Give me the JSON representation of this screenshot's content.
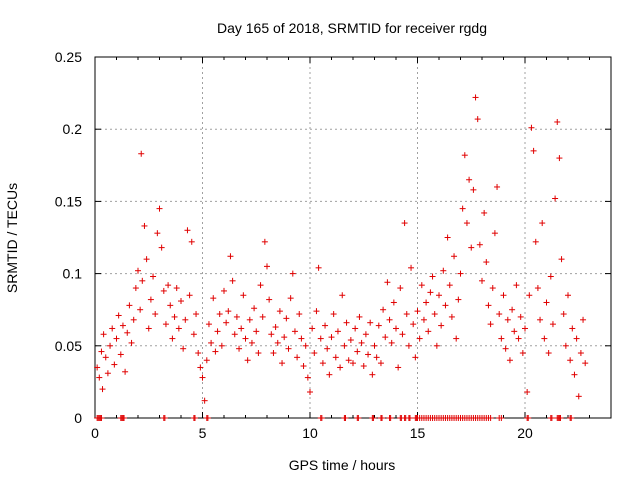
{
  "chart_data": {
    "type": "scatter",
    "title": "Day 165 of 2018, SRMTID for receiver rgdg",
    "xlabel": "GPS time / hours",
    "ylabel": "SRMTID / TECUs",
    "xlim": [
      0,
      24
    ],
    "ylim": [
      0,
      0.25
    ],
    "x_ticks": [
      0,
      5,
      10,
      15,
      20
    ],
    "x_tick_labels": [
      "0",
      "5",
      "10",
      "15",
      "20"
    ],
    "y_ticks": [
      0,
      0.05,
      0.1,
      0.15,
      0.2,
      0.25
    ],
    "y_tick_labels": [
      "0",
      "0.05",
      "0.1",
      "0.15",
      "0.2",
      "0.25"
    ],
    "grid": true,
    "marker": "+",
    "color": "#e00000",
    "series": [
      {
        "name": "SRMTID",
        "points": [
          [
            0.1,
            0.035
          ],
          [
            0.2,
            0.028
          ],
          [
            0.3,
            0.046
          ],
          [
            0.35,
            0.02
          ],
          [
            0.4,
            0.058
          ],
          [
            0.5,
            0.042
          ],
          [
            0.6,
            0.031
          ],
          [
            0.7,
            0.05
          ],
          [
            0.8,
            0.062
          ],
          [
            0.9,
            0.037
          ],
          [
            1.0,
            0.055
          ],
          [
            1.1,
            0.071
          ],
          [
            1.2,
            0.044
          ],
          [
            1.3,
            0.064
          ],
          [
            1.4,
            0.032
          ],
          [
            1.5,
            0.059
          ],
          [
            1.6,
            0.078
          ],
          [
            1.7,
            0.052
          ],
          [
            1.8,
            0.068
          ],
          [
            1.9,
            0.09
          ],
          [
            2.0,
            0.102
          ],
          [
            2.1,
            0.075
          ],
          [
            2.15,
            0.183
          ],
          [
            2.2,
            0.095
          ],
          [
            2.3,
            0.133
          ],
          [
            2.4,
            0.11
          ],
          [
            2.5,
            0.062
          ],
          [
            2.6,
            0.082
          ],
          [
            2.7,
            0.098
          ],
          [
            2.8,
            0.072
          ],
          [
            2.9,
            0.128
          ],
          [
            3.0,
            0.145
          ],
          [
            3.1,
            0.118
          ],
          [
            3.2,
            0.088
          ],
          [
            3.3,
            0.065
          ],
          [
            3.4,
            0.092
          ],
          [
            3.5,
            0.078
          ],
          [
            3.6,
            0.055
          ],
          [
            3.7,
            0.07
          ],
          [
            3.8,
            0.09
          ],
          [
            3.9,
            0.062
          ],
          [
            4.0,
            0.081
          ],
          [
            4.1,
            0.048
          ],
          [
            4.2,
            0.068
          ],
          [
            4.3,
            0.13
          ],
          [
            4.4,
            0.085
          ],
          [
            4.5,
            0.122
          ],
          [
            4.6,
            0.058
          ],
          [
            4.7,
            0.072
          ],
          [
            4.8,
            0.045
          ],
          [
            4.9,
            0.035
          ],
          [
            5.0,
            0.028
          ],
          [
            5.1,
            0.012
          ],
          [
            5.2,
            0.04
          ],
          [
            5.3,
            0.065
          ],
          [
            5.4,
            0.052
          ],
          [
            5.5,
            0.083
          ],
          [
            5.6,
            0.046
          ],
          [
            5.7,
            0.06
          ],
          [
            5.8,
            0.072
          ],
          [
            5.9,
            0.05
          ],
          [
            6.0,
            0.088
          ],
          [
            6.1,
            0.066
          ],
          [
            6.2,
            0.074
          ],
          [
            6.3,
            0.112
          ],
          [
            6.4,
            0.095
          ],
          [
            6.5,
            0.058
          ],
          [
            6.6,
            0.07
          ],
          [
            6.7,
            0.048
          ],
          [
            6.8,
            0.062
          ],
          [
            6.9,
            0.085
          ],
          [
            7.0,
            0.055
          ],
          [
            7.1,
            0.04
          ],
          [
            7.2,
            0.068
          ],
          [
            7.3,
            0.052
          ],
          [
            7.4,
            0.076
          ],
          [
            7.5,
            0.06
          ],
          [
            7.6,
            0.045
          ],
          [
            7.7,
            0.092
          ],
          [
            7.8,
            0.07
          ],
          [
            7.9,
            0.122
          ],
          [
            8.0,
            0.105
          ],
          [
            8.1,
            0.082
          ],
          [
            8.2,
            0.058
          ],
          [
            8.3,
            0.045
          ],
          [
            8.4,
            0.063
          ],
          [
            8.5,
            0.052
          ],
          [
            8.6,
            0.074
          ],
          [
            8.7,
            0.038
          ],
          [
            8.8,
            0.056
          ],
          [
            8.9,
            0.069
          ],
          [
            9.0,
            0.048
          ],
          [
            9.1,
            0.083
          ],
          [
            9.2,
            0.1
          ],
          [
            9.3,
            0.06
          ],
          [
            9.4,
            0.042
          ],
          [
            9.5,
            0.072
          ],
          [
            9.6,
            0.055
          ],
          [
            9.7,
            0.036
          ],
          [
            9.8,
            0.05
          ],
          [
            9.9,
            0.028
          ],
          [
            10.0,
            0.018
          ],
          [
            10.1,
            0.062
          ],
          [
            10.2,
            0.045
          ],
          [
            10.3,
            0.074
          ],
          [
            10.4,
            0.104
          ],
          [
            10.5,
            0.055
          ],
          [
            10.6,
            0.038
          ],
          [
            10.7,
            0.064
          ],
          [
            10.8,
            0.048
          ],
          [
            10.9,
            0.03
          ],
          [
            11.0,
            0.056
          ],
          [
            11.1,
            0.072
          ],
          [
            11.2,
            0.042
          ],
          [
            11.3,
            0.06
          ],
          [
            11.4,
            0.035
          ],
          [
            11.5,
            0.085
          ],
          [
            11.6,
            0.05
          ],
          [
            11.7,
            0.066
          ],
          [
            11.8,
            0.04
          ],
          [
            11.9,
            0.054
          ],
          [
            12.0,
            0.038
          ],
          [
            12.1,
            0.062
          ],
          [
            12.2,
            0.046
          ],
          [
            12.3,
            0.07
          ],
          [
            12.4,
            0.052
          ],
          [
            12.5,
            0.036
          ],
          [
            12.6,
            0.058
          ],
          [
            12.7,
            0.044
          ],
          [
            12.8,
            0.066
          ],
          [
            12.9,
            0.03
          ],
          [
            13.0,
            0.05
          ],
          [
            13.1,
            0.042
          ],
          [
            13.2,
            0.064
          ],
          [
            13.3,
            0.038
          ],
          [
            13.4,
            0.075
          ],
          [
            13.5,
            0.056
          ],
          [
            13.6,
            0.094
          ],
          [
            13.7,
            0.068
          ],
          [
            13.8,
            0.052
          ],
          [
            13.9,
            0.08
          ],
          [
            14.0,
            0.062
          ],
          [
            14.1,
            0.035
          ],
          [
            14.2,
            0.09
          ],
          [
            14.3,
            0.058
          ],
          [
            14.4,
            0.135
          ],
          [
            14.5,
            0.072
          ],
          [
            14.6,
            0.05
          ],
          [
            14.7,
            0.104
          ],
          [
            14.8,
            0.065
          ],
          [
            14.9,
            0.042
          ],
          [
            15.0,
            0.074
          ],
          [
            15.1,
            0.055
          ],
          [
            15.2,
            0.092
          ],
          [
            15.3,
            0.068
          ],
          [
            15.4,
            0.08
          ],
          [
            15.5,
            0.06
          ],
          [
            15.6,
            0.087
          ],
          [
            15.7,
            0.098
          ],
          [
            15.8,
            0.072
          ],
          [
            15.9,
            0.05
          ],
          [
            16.0,
            0.085
          ],
          [
            16.1,
            0.064
          ],
          [
            16.2,
            0.102
          ],
          [
            16.3,
            0.078
          ],
          [
            16.4,
            0.125
          ],
          [
            16.5,
            0.092
          ],
          [
            16.6,
            0.07
          ],
          [
            16.7,
            0.112
          ],
          [
            16.8,
            0.055
          ],
          [
            16.9,
            0.082
          ],
          [
            17.0,
            0.1
          ],
          [
            17.1,
            0.145
          ],
          [
            17.2,
            0.182
          ],
          [
            17.3,
            0.135
          ],
          [
            17.4,
            0.165
          ],
          [
            17.5,
            0.118
          ],
          [
            17.6,
            0.158
          ],
          [
            17.7,
            0.222
          ],
          [
            17.8,
            0.207
          ],
          [
            17.9,
            0.12
          ],
          [
            18.0,
            0.095
          ],
          [
            18.1,
            0.142
          ],
          [
            18.2,
            0.108
          ],
          [
            18.3,
            0.078
          ],
          [
            18.4,
            0.065
          ],
          [
            18.5,
            0.09
          ],
          [
            18.6,
            0.128
          ],
          [
            18.7,
            0.16
          ],
          [
            18.8,
            0.072
          ],
          [
            18.9,
            0.055
          ],
          [
            19.0,
            0.085
          ],
          [
            19.1,
            0.048
          ],
          [
            19.2,
            0.068
          ],
          [
            19.3,
            0.04
          ],
          [
            19.4,
            0.075
          ],
          [
            19.5,
            0.06
          ],
          [
            19.6,
            0.092
          ],
          [
            19.7,
            0.055
          ],
          [
            19.8,
            0.07
          ],
          [
            19.9,
            0.045
          ],
          [
            20.0,
            0.062
          ],
          [
            20.1,
            0.018
          ],
          [
            20.2,
            0.085
          ],
          [
            20.3,
            0.201
          ],
          [
            20.4,
            0.185
          ],
          [
            20.5,
            0.122
          ],
          [
            20.6,
            0.09
          ],
          [
            20.7,
            0.068
          ],
          [
            20.8,
            0.135
          ],
          [
            20.9,
            0.055
          ],
          [
            21.0,
            0.08
          ],
          [
            21.1,
            0.045
          ],
          [
            21.2,
            0.098
          ],
          [
            21.3,
            0.065
          ],
          [
            21.4,
            0.152
          ],
          [
            21.5,
            0.205
          ],
          [
            21.6,
            0.18
          ],
          [
            21.7,
            0.11
          ],
          [
            21.8,
            0.072
          ],
          [
            21.9,
            0.05
          ],
          [
            22.0,
            0.085
          ],
          [
            22.1,
            0.04
          ],
          [
            22.2,
            0.062
          ],
          [
            22.3,
            0.03
          ],
          [
            22.4,
            0.055
          ],
          [
            22.5,
            0.015
          ],
          [
            22.6,
            0.045
          ],
          [
            22.7,
            0.068
          ],
          [
            22.8,
            0.038
          ]
        ]
      }
    ],
    "zero_points_x": [
      0.1,
      0.15,
      0.2,
      0.25,
      0.3,
      1.2,
      1.25,
      1.3,
      1.35,
      3.2,
      3.25,
      4.6,
      4.65,
      5.2,
      5.25,
      10.5,
      10.55,
      11.6,
      11.65,
      12.2,
      12.25,
      12.9,
      12.95,
      13.3,
      13.35,
      13.7,
      13.75,
      14.2,
      14.25,
      14.4,
      14.45,
      14.6,
      14.65,
      14.9,
      14.95,
      15.0,
      15.1,
      15.2,
      15.3,
      15.4,
      15.5,
      15.6,
      15.7,
      15.8,
      15.9,
      16.0,
      16.1,
      16.2,
      16.3,
      16.4,
      16.5,
      16.6,
      16.7,
      16.8,
      16.9,
      17.0,
      17.1,
      17.2,
      17.3,
      17.4,
      17.5,
      17.6,
      17.7,
      17.8,
      17.9,
      18.0,
      18.1,
      18.2,
      18.3,
      18.4,
      18.8,
      18.9,
      20.1,
      20.15,
      21.2,
      21.25,
      21.5,
      21.55,
      21.6,
      21.65,
      22.1,
      22.15
    ]
  }
}
